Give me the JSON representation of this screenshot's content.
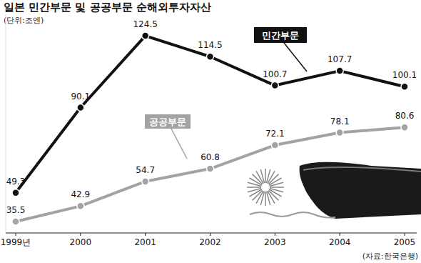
{
  "chart_data": {
    "type": "line",
    "title": "일본 민간부문 및 공공부문 순해외투자자산",
    "subtitle": "(단위:조엔)",
    "source": "(자료:한국은행)",
    "categories": [
      "1999년",
      "2000",
      "2001",
      "2002",
      "2003",
      "2004",
      "2005"
    ],
    "series": [
      {
        "name": "민간부문",
        "color": "#111111",
        "marker": "circle",
        "line_style": "solid",
        "values": [
          49.3,
          90.1,
          124.5,
          114.5,
          100.7,
          107.7,
          100.1
        ]
      },
      {
        "name": "공공부문",
        "color": "#a3a3a3",
        "marker": "circle",
        "line_style": "solid",
        "values": [
          35.5,
          42.9,
          54.7,
          60.8,
          72.1,
          78.1,
          80.6
        ]
      }
    ],
    "ylim": [
      30,
      135
    ],
    "grid": false,
    "data_labels": true,
    "tick_labels": "x"
  }
}
